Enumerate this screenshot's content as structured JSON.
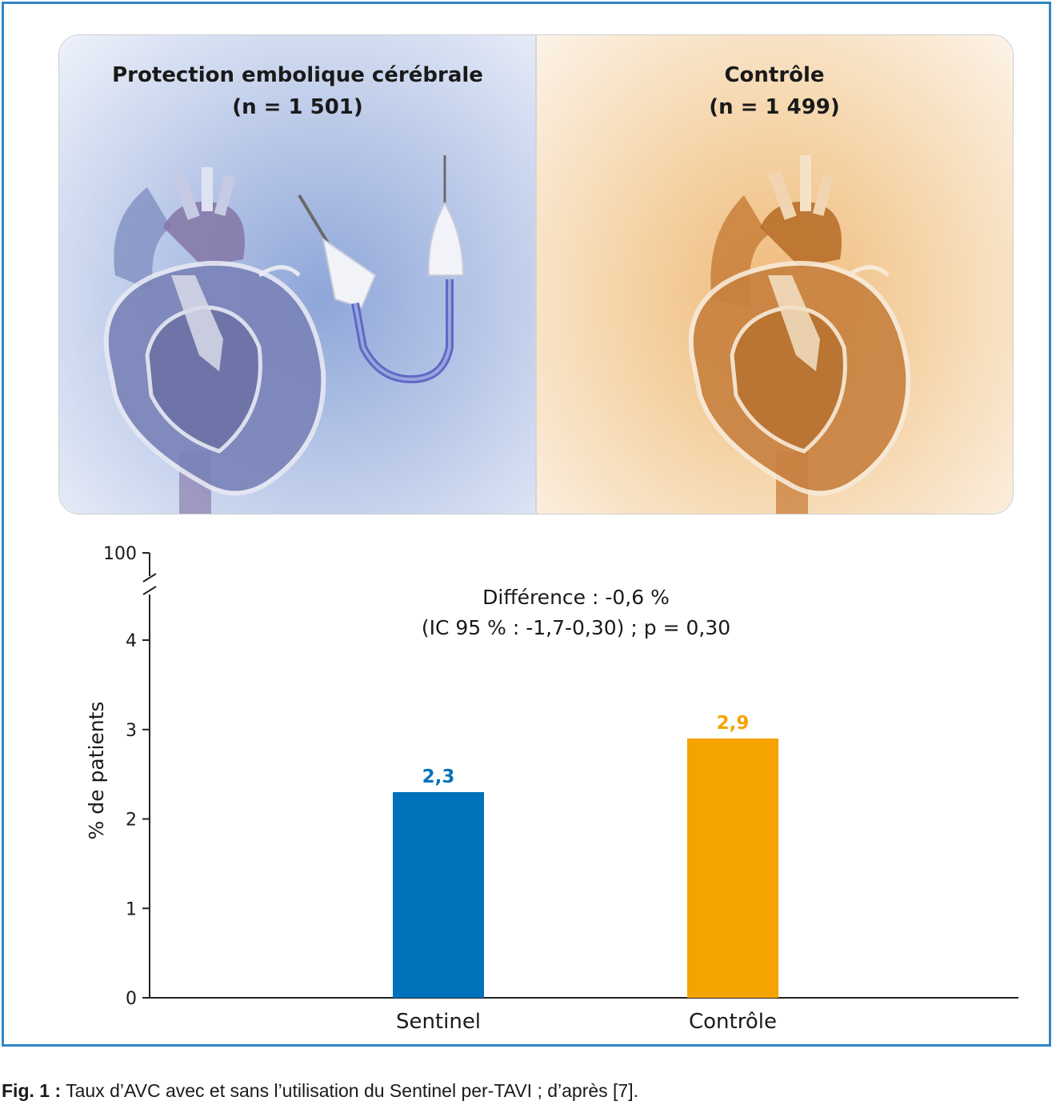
{
  "panels": {
    "left": {
      "title": "Protection embolique cérébrale",
      "subtitle": "(n = 1 501)"
    },
    "right": {
      "title": "Contrôle",
      "subtitle": "(n = 1 499)"
    }
  },
  "chart_data": {
    "type": "bar",
    "categories": [
      "Sentinel",
      "Contrôle"
    ],
    "values": [
      2.3,
      2.9
    ],
    "value_labels": [
      "2,3",
      "2,9"
    ],
    "colors": [
      "#0072bb",
      "#f5a300"
    ],
    "ylabel": "% de patients",
    "xlabel": "",
    "ylim": [
      0,
      4
    ],
    "axis_break": true,
    "y_ticks": [
      "0",
      "1",
      "2",
      "3",
      "4",
      "100"
    ],
    "annotation_line1": "Différence : -0,6 %",
    "annotation_line2": "(IC 95 % : -1,7-0,30) ; p = 0,30",
    "grid": false
  },
  "caption": {
    "label": "Fig. 1 :",
    "text": " Taux d’AVC avec et sans l’utilisation du Sentinel per-TAVI ; d’après [7]."
  }
}
